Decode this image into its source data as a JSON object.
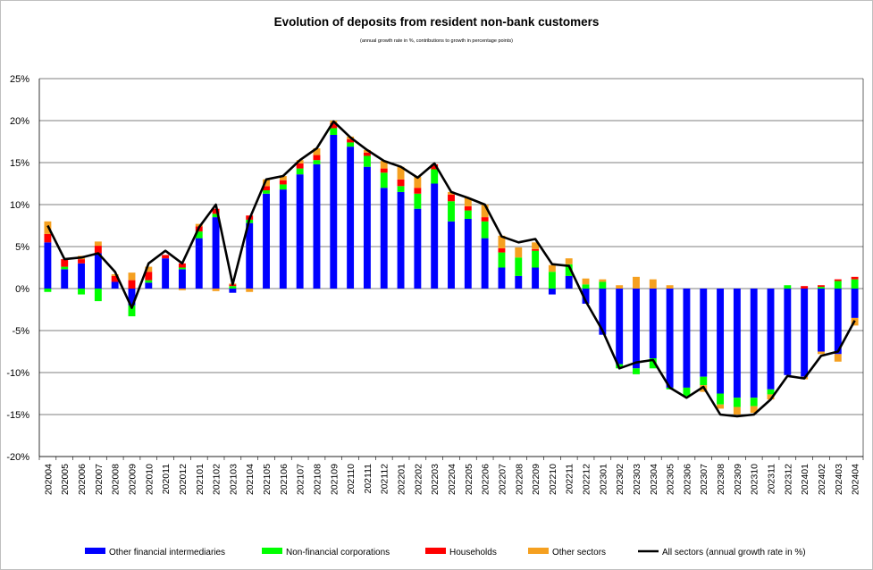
{
  "chart_data": {
    "type": "bar",
    "stacked": true,
    "title": "Evolution of deposits from resident non-bank customers",
    "subtitle": "(annual growth rate in %, contributions to growth in percentage points)",
    "ylim": [
      -20,
      25
    ],
    "yticks": [
      25,
      20,
      15,
      10,
      5,
      0,
      -5,
      -10,
      -15,
      -20
    ],
    "ytick_labels": [
      "25%",
      "20%",
      "15%",
      "10%",
      "5%",
      "0%",
      "-5%",
      "-10%",
      "-15%",
      "-20%"
    ],
    "grid": true,
    "legend_position": "bottom",
    "categories": [
      "202004",
      "202005",
      "202006",
      "202007",
      "202008",
      "202009",
      "202010",
      "202011",
      "202012",
      "202101",
      "202102",
      "202103",
      "202104",
      "202105",
      "202106",
      "202107",
      "202108",
      "202109",
      "202110",
      "202111",
      "202112",
      "202201",
      "202202",
      "202203",
      "202204",
      "202205",
      "202206",
      "202207",
      "202208",
      "202209",
      "202210",
      "202211",
      "202212",
      "202301",
      "202302",
      "202303",
      "202304",
      "202305",
      "202306",
      "202307",
      "202308",
      "202309",
      "202310",
      "202311",
      "202312",
      "202401",
      "202402",
      "202403",
      "202404"
    ],
    "series": [
      {
        "name": "Other financial intermediaries",
        "color": "#0000ff",
        "kind": "bar",
        "values": [
          5.5,
          2.3,
          3.0,
          4.2,
          0.8,
          -2.0,
          0.7,
          3.6,
          2.3,
          6.0,
          8.5,
          -0.5,
          7.8,
          11.3,
          11.8,
          13.6,
          14.8,
          18.3,
          16.9,
          14.5,
          12.0,
          11.5,
          9.5,
          12.5,
          8.0,
          8.3,
          6.0,
          2.5,
          1.5,
          2.5,
          -0.7,
          1.5,
          -1.8,
          -5.5,
          -9.0,
          -9.5,
          -8.3,
          -11.8,
          -11.8,
          -10.5,
          -12.5,
          -13.0,
          -13.0,
          -12.0,
          -10.3,
          -10.5,
          -7.5,
          -7.8,
          -3.5
        ]
      },
      {
        "name": "Non-financial corporations",
        "color": "#00ff00",
        "kind": "bar",
        "values": [
          -0.4,
          0.3,
          -0.7,
          -1.5,
          0.0,
          -1.3,
          0.3,
          0.0,
          0.2,
          0.8,
          0.4,
          0.3,
          0.4,
          0.4,
          0.6,
          0.7,
          0.5,
          0.8,
          0.5,
          1.3,
          1.8,
          0.7,
          1.8,
          1.7,
          2.4,
          1.0,
          2.0,
          1.8,
          2.2,
          2.0,
          2.0,
          1.4,
          0.5,
          0.8,
          -0.5,
          -0.7,
          -1.2,
          -0.2,
          -1.0,
          -1.0,
          -1.3,
          -1.1,
          -1.0,
          -0.6,
          0.4,
          0.0,
          0.2,
          0.9,
          1.1
        ]
      },
      {
        "name": "Households",
        "color": "#ff0000",
        "kind": "bar",
        "values": [
          1.0,
          0.9,
          0.5,
          0.9,
          0.7,
          1.0,
          1.0,
          0.4,
          0.5,
          0.6,
          0.6,
          0.2,
          0.5,
          0.5,
          0.5,
          0.6,
          0.6,
          0.6,
          0.4,
          0.4,
          0.5,
          0.8,
          0.7,
          0.6,
          0.8,
          0.5,
          0.5,
          0.5,
          0.0,
          0.2,
          0.0,
          0.0,
          0.0,
          0.0,
          0.0,
          0.0,
          0.0,
          0.0,
          0.0,
          0.0,
          0.0,
          0.0,
          0.0,
          0.0,
          0.0,
          0.3,
          0.2,
          0.2,
          0.3
        ]
      },
      {
        "name": "Other sectors",
        "color": "#f5a020",
        "kind": "bar",
        "values": [
          1.5,
          0.0,
          0.4,
          0.5,
          0.2,
          0.9,
          0.6,
          0.0,
          -0.2,
          0.3,
          -0.3,
          0.1,
          -0.4,
          0.8,
          0.5,
          0.4,
          0.8,
          0.3,
          0.3,
          0.3,
          0.9,
          1.5,
          1.3,
          0.0,
          0.3,
          1.0,
          1.5,
          1.5,
          1.2,
          0.8,
          0.8,
          0.7,
          0.7,
          0.3,
          0.4,
          1.4,
          1.1,
          0.4,
          0.0,
          -0.8,
          -0.5,
          -0.9,
          -0.8,
          -0.6,
          0.0,
          -0.3,
          -0.3,
          -0.9,
          -0.9
        ]
      },
      {
        "name": "All sectors (annual growth rate in %)",
        "color": "#000000",
        "kind": "line",
        "values": [
          7.5,
          3.5,
          3.7,
          4.2,
          2.0,
          -2.3,
          3.0,
          4.5,
          3.0,
          7.3,
          10.0,
          0.5,
          8.3,
          13.0,
          13.4,
          15.3,
          16.7,
          19.9,
          18.0,
          16.5,
          15.2,
          14.5,
          13.2,
          14.9,
          11.5,
          10.8,
          10.0,
          6.2,
          5.5,
          5.9,
          2.9,
          2.7,
          -1.5,
          -5.0,
          -9.5,
          -8.8,
          -8.5,
          -11.8,
          -13.0,
          -11.7,
          -15.0,
          -15.2,
          -15.0,
          -13.2,
          -10.4,
          -10.7,
          -8.0,
          -7.5,
          -3.8
        ]
      }
    ]
  }
}
